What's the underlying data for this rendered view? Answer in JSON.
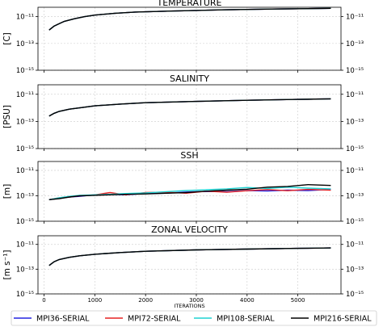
{
  "xlabel": "ITERATIONS",
  "xlim": [
    -120,
    5850
  ],
  "xticks": [
    {
      "value": 0,
      "label": "0"
    },
    {
      "value": 1000,
      "label": "1000"
    },
    {
      "value": 2000,
      "label": "2000"
    },
    {
      "value": 3000,
      "label": "3000"
    },
    {
      "value": 4000,
      "label": "4000"
    },
    {
      "value": 5000,
      "label": "5000"
    }
  ],
  "yticks": [
    {
      "exp": -11,
      "label": "10⁻¹¹"
    },
    {
      "exp": -13,
      "label": "10⁻¹³"
    },
    {
      "exp": -15,
      "label": "10⁻¹⁵"
    }
  ],
  "ylim_exp": [
    -15,
    -10.3
  ],
  "legend": {
    "position": "bottom",
    "entries": [
      {
        "label": "MPI36-SERIAL",
        "color": "#2424e0"
      },
      {
        "label": "MPI72-SERIAL",
        "color": "#e52222"
      },
      {
        "label": "MPI108-SERIAL",
        "color": "#1ed2d2"
      },
      {
        "label": "MPI216-SERIAL",
        "color": "#000000"
      }
    ]
  },
  "chart_data": [
    {
      "type": "line",
      "title": "TEMPERATURE",
      "ylabel": "[C]",
      "yscale": "log",
      "grid": true,
      "x": [
        100,
        200,
        300,
        400,
        600,
        800,
        1000,
        1400,
        1800,
        2500,
        3500,
        4500,
        5650
      ],
      "series": [
        {
          "name": "MPI36-SERIAL",
          "values": [
            1e-12,
            2e-12,
            3e-12,
            4.5e-12,
            7e-12,
            1e-11,
            1.3e-11,
            1.8e-11,
            2.2e-11,
            2.6e-11,
            3.2e-11,
            3.7e-11,
            4.2e-11
          ]
        },
        {
          "name": "MPI72-SERIAL",
          "values": [
            1e-12,
            2e-12,
            3e-12,
            4.5e-12,
            7e-12,
            1e-11,
            1.3e-11,
            1.8e-11,
            2.2e-11,
            2.6e-11,
            3.2e-11,
            3.7e-11,
            4.2e-11
          ]
        },
        {
          "name": "MPI108-SERIAL",
          "values": [
            1e-12,
            2e-12,
            3e-12,
            4.5e-12,
            7e-12,
            1e-11,
            1.3e-11,
            1.8e-11,
            2.2e-11,
            2.6e-11,
            3.2e-11,
            3.7e-11,
            4.2e-11
          ]
        },
        {
          "name": "MPI216-SERIAL",
          "values": [
            1e-12,
            2e-12,
            3e-12,
            4.5e-12,
            7e-12,
            1e-11,
            1.3e-11,
            1.8e-11,
            2.2e-11,
            2.6e-11,
            3.2e-11,
            3.7e-11,
            4.2e-11
          ]
        }
      ]
    },
    {
      "type": "line",
      "title": "SALINITY",
      "ylabel": "[PSU]",
      "yscale": "log",
      "grid": true,
      "x": [
        100,
        200,
        300,
        500,
        700,
        1000,
        1500,
        2000,
        3000,
        4000,
        5000,
        5650
      ],
      "series": [
        {
          "name": "MPI36-SERIAL",
          "values": [
            2.5e-13,
            4e-13,
            5.5e-13,
            8e-13,
            1e-12,
            1.4e-12,
            1.9e-12,
            2.4e-12,
            3e-12,
            3.6e-12,
            4.2e-12,
            4.6e-12
          ]
        },
        {
          "name": "MPI72-SERIAL",
          "values": [
            2.5e-13,
            4e-13,
            5.5e-13,
            8e-13,
            1e-12,
            1.4e-12,
            1.9e-12,
            2.4e-12,
            3e-12,
            3.6e-12,
            4.2e-12,
            4.6e-12
          ]
        },
        {
          "name": "MPI108-SERIAL",
          "values": [
            2.5e-13,
            4e-13,
            5.5e-13,
            8e-13,
            1e-12,
            1.4e-12,
            1.9e-12,
            2.4e-12,
            3e-12,
            3.6e-12,
            4.2e-12,
            4.6e-12
          ]
        },
        {
          "name": "MPI216-SERIAL",
          "values": [
            2.5e-13,
            4e-13,
            5.5e-13,
            8e-13,
            1e-12,
            1.4e-12,
            1.9e-12,
            2.4e-12,
            3e-12,
            3.6e-12,
            4.2e-12,
            4.6e-12
          ]
        }
      ]
    },
    {
      "type": "line",
      "title": "SSH",
      "ylabel": "[m]",
      "yscale": "log",
      "grid": true,
      "x": [
        100,
        300,
        500,
        700,
        1000,
        1300,
        1600,
        2000,
        2400,
        2800,
        3200,
        3600,
        4000,
        4400,
        4800,
        5200,
        5650
      ],
      "series": [
        {
          "name": "MPI36-SERIAL",
          "values": [
            5e-14,
            6.5e-14,
            8e-14,
            9e-14,
            1.2e-13,
            1.3e-13,
            1.2e-13,
            1.5e-13,
            1.6e-13,
            2e-13,
            2.2e-13,
            2.1e-13,
            2.6e-13,
            2.4e-13,
            2.8e-13,
            2.6e-13,
            3.2e-13
          ]
        },
        {
          "name": "MPI72-SERIAL",
          "values": [
            5e-14,
            7e-14,
            8e-14,
            1e-13,
            1.2e-13,
            1.8e-13,
            1.2e-13,
            1.8e-13,
            1.9e-13,
            1.6e-13,
            2.3e-13,
            1.9e-13,
            2.5e-13,
            3.1e-13,
            2.5e-13,
            3.2e-13,
            2.8e-13
          ]
        },
        {
          "name": "MPI108-SERIAL",
          "values": [
            5e-14,
            7e-14,
            9e-14,
            1.1e-13,
            1.2e-13,
            1.3e-13,
            1.5e-13,
            1.7e-13,
            2.1e-13,
            2.6e-13,
            3e-13,
            3.5e-13,
            4.5e-13,
            3.8e-13,
            4.8e-13,
            4e-13,
            3.5e-13
          ]
        },
        {
          "name": "MPI216-SERIAL",
          "values": [
            5e-14,
            6e-14,
            8e-14,
            1e-13,
            1.1e-13,
            1.2e-13,
            1.3e-13,
            1.4e-13,
            1.6e-13,
            1.8e-13,
            2.3e-13,
            2.8e-13,
            3.3e-13,
            4.8e-13,
            5.5e-13,
            7.5e-13,
            6.5e-13
          ]
        }
      ]
    },
    {
      "type": "line",
      "title": "ZONAL VELOCITY",
      "ylabel": "[m s⁻¹]",
      "yscale": "log",
      "grid": true,
      "x": [
        100,
        200,
        300,
        500,
        700,
        1000,
        1500,
        2000,
        3000,
        4000,
        5000,
        5650
      ],
      "series": [
        {
          "name": "MPI36-SERIAL",
          "values": [
            2e-13,
            4e-13,
            6e-13,
            9e-13,
            1.2e-12,
            1.6e-12,
            2.2e-12,
            2.8e-12,
            3.6e-12,
            4.2e-12,
            4.8e-12,
            5.2e-12
          ]
        },
        {
          "name": "MPI72-SERIAL",
          "values": [
            2e-13,
            4e-13,
            6e-13,
            9e-13,
            1.2e-12,
            1.6e-12,
            2.2e-12,
            2.8e-12,
            3.6e-12,
            4.2e-12,
            4.8e-12,
            5.2e-12
          ]
        },
        {
          "name": "MPI108-SERIAL",
          "values": [
            2e-13,
            4e-13,
            6e-13,
            9e-13,
            1.2e-12,
            1.6e-12,
            2.2e-12,
            2.8e-12,
            3.6e-12,
            4.2e-12,
            4.8e-12,
            5.2e-12
          ]
        },
        {
          "name": "MPI216-SERIAL",
          "values": [
            2e-13,
            4e-13,
            6e-13,
            9e-13,
            1.2e-12,
            1.6e-12,
            2.2e-12,
            2.8e-12,
            3.6e-12,
            4.2e-12,
            4.8e-12,
            5.2e-12
          ]
        }
      ]
    }
  ]
}
